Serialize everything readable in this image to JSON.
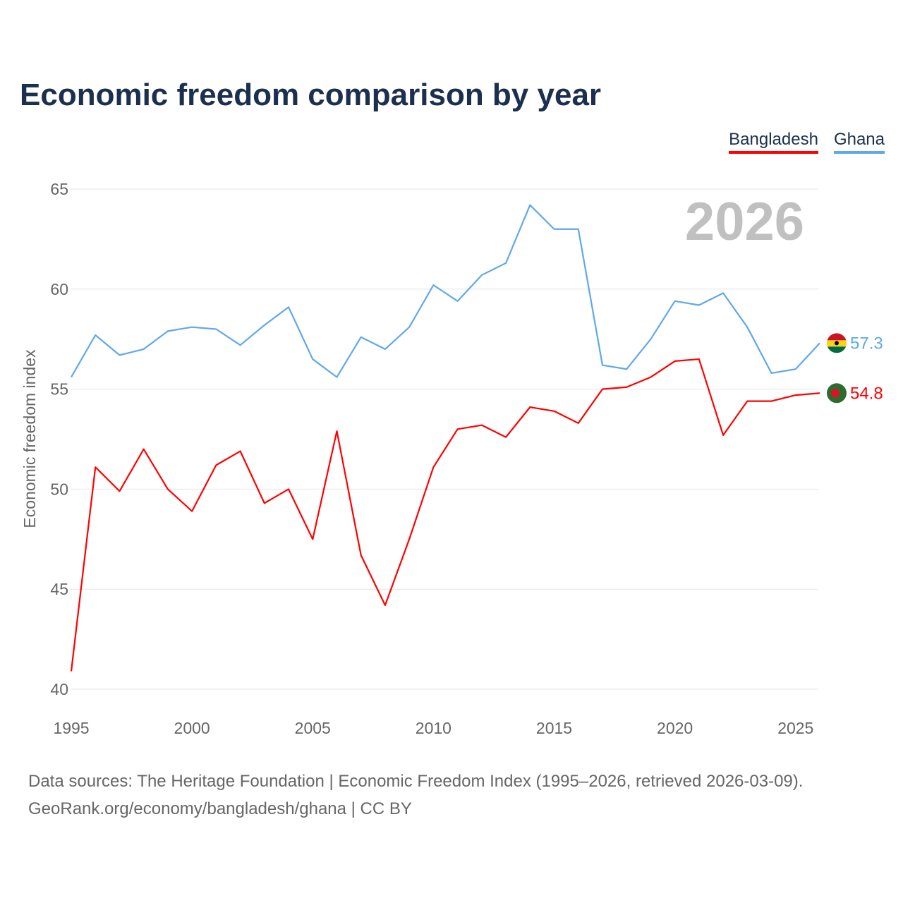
{
  "title": "Economic freedom comparison by year",
  "legend": [
    {
      "label": "Bangladesh",
      "color": "#ff0000"
    },
    {
      "label": "Ghana",
      "color": "#5fa8ec"
    }
  ],
  "watermark_year": "2026",
  "footer": {
    "line1": "Data sources: The Heritage Foundation | Economic Freedom Index (1995–2026, retrieved 2026-03-09).",
    "line2": "GeoRank.org/economy/bangladesh/ghana | CC BY"
  },
  "chart_data": {
    "type": "line",
    "title": "Economic freedom comparison by year",
    "xlabel": "",
    "ylabel": "Economic freedom index",
    "xlim": [
      1995,
      2026
    ],
    "ylim": [
      40,
      65
    ],
    "xticks": [
      "1995",
      "2000",
      "2005",
      "2010",
      "2015",
      "2020",
      "2025"
    ],
    "yticks": [
      "40",
      "45",
      "50",
      "55",
      "60",
      "65"
    ],
    "grid": true,
    "legend_position": "top-right",
    "x": [
      1995,
      1996,
      1997,
      1998,
      1999,
      2000,
      2001,
      2002,
      2003,
      2004,
      2005,
      2006,
      2007,
      2008,
      2009,
      2010,
      2011,
      2012,
      2013,
      2014,
      2015,
      2016,
      2017,
      2018,
      2019,
      2020,
      2021,
      2022,
      2023,
      2024,
      2025,
      2026
    ],
    "series": [
      {
        "name": "Bangladesh",
        "color": "#ff0000",
        "end_label": "54.8",
        "values": [
          40.9,
          51.1,
          49.9,
          52.0,
          50.0,
          48.9,
          51.2,
          51.9,
          49.3,
          50.0,
          47.5,
          52.9,
          46.7,
          44.2,
          47.5,
          51.1,
          53.0,
          53.2,
          52.6,
          54.1,
          53.9,
          53.3,
          55.0,
          55.1,
          55.6,
          56.4,
          56.5,
          52.7,
          54.4,
          54.4,
          54.7,
          54.8
        ]
      },
      {
        "name": "Ghana",
        "color": "#5fa8ec",
        "end_label": "57.3",
        "values": [
          55.6,
          57.7,
          56.7,
          57.0,
          57.9,
          58.1,
          58.0,
          57.2,
          58.2,
          59.1,
          56.5,
          55.6,
          57.6,
          57.0,
          58.1,
          60.2,
          59.4,
          60.7,
          61.3,
          64.2,
          63.0,
          63.0,
          56.2,
          56.0,
          57.5,
          59.4,
          59.2,
          59.8,
          58.1,
          55.8,
          56.0,
          57.3
        ]
      }
    ]
  }
}
